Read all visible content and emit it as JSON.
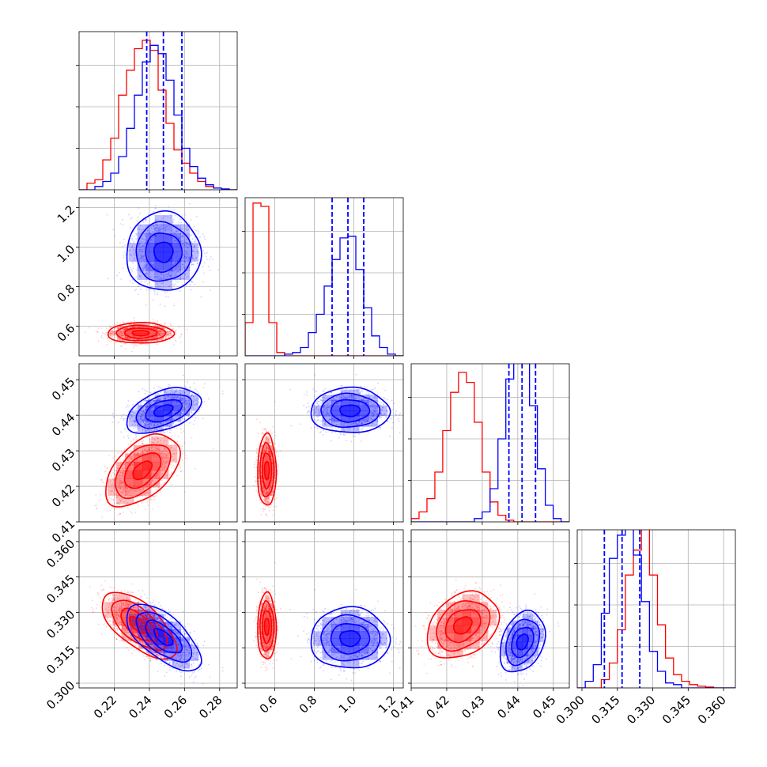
{
  "chart_data": {
    "type": "scatter",
    "figure_kind": "corner plot",
    "parameters": 4,
    "series": [
      {
        "color": "#ff0000"
      },
      {
        "color": "#0000ff"
      }
    ],
    "axis_ticks": [
      [
        "0.22",
        "0.24",
        "0.26",
        "0.28"
      ],
      [
        "0.6",
        "0.8",
        "1.0",
        "1.2"
      ],
      [
        "0.41",
        "0.42",
        "0.43",
        "0.44",
        "0.45"
      ],
      [
        "0.300",
        "0.315",
        "0.330",
        "0.345",
        "0.360"
      ]
    ],
    "axis_ranges": [
      [
        0.2,
        0.29
      ],
      [
        0.45,
        1.25
      ],
      [
        0.41,
        0.4545
      ],
      [
        0.298,
        0.365
      ]
    ],
    "means": [
      {
        "red": [
          0.235,
          0.57,
          0.425,
          0.324
        ],
        "blue": [
          0.248,
          0.97,
          0.441,
          0.318
        ]
      }
    ],
    "quantiles_blue": {
      "p0": [
        0.2385,
        0.248,
        0.2585
      ],
      "p1": [
        0.89,
        0.97,
        1.05
      ],
      "p2": [
        0.4375,
        0.4412,
        0.445
      ],
      "p3": [
        0.3095,
        0.317,
        0.3245
      ]
    },
    "hist_1d": {
      "p0": {
        "edges_start": 0.2,
        "edges_step": 0.0045,
        "red": [
          0,
          0.04,
          0.06,
          0.18,
          0.31,
          0.57,
          0.72,
          0.85,
          0.9,
          0.84,
          0.6,
          0.4,
          0.24,
          0.16,
          0.1,
          0.05,
          0.02,
          0.01,
          0,
          0
        ],
        "blue": [
          0,
          0,
          0.02,
          0.05,
          0.1,
          0.2,
          0.37,
          0.57,
          0.77,
          0.87,
          0.82,
          0.66,
          0.45,
          0.25,
          0.14,
          0.07,
          0.03,
          0.01,
          0.005,
          0
        ]
      },
      "p1": {
        "edges_start": 0.45,
        "edges_step": 0.04,
        "red": [
          0.2,
          0.92,
          0.9,
          0.2,
          0.02,
          0,
          0,
          0,
          0,
          0,
          0,
          0,
          0,
          0,
          0,
          0,
          0,
          0,
          0,
          0
        ],
        "blue": [
          0,
          0,
          0,
          0,
          0,
          0.01,
          0.02,
          0.05,
          0.14,
          0.25,
          0.42,
          0.58,
          0.71,
          0.72,
          0.52,
          0.29,
          0.12,
          0.05,
          0.01,
          0
        ]
      },
      "p2": {
        "edges_start": 0.41,
        "edges_step": 0.00222,
        "red": [
          0.02,
          0.06,
          0.14,
          0.3,
          0.55,
          0.78,
          0.9,
          0.84,
          0.6,
          0.3,
          0.12,
          0.04,
          0.01,
          0,
          0,
          0,
          0,
          0,
          0,
          0
        ],
        "blue": [
          0,
          0,
          0,
          0,
          0,
          0,
          0,
          0,
          0.02,
          0.06,
          0.2,
          0.5,
          0.86,
          1.0,
          0.98,
          0.7,
          0.32,
          0.1,
          0.02,
          0
        ]
      },
      "p3": {
        "edges_start": 0.298,
        "edges_step": 0.0034,
        "red": [
          0,
          0,
          0,
          0.05,
          0.15,
          0.35,
          0.68,
          0.83,
          0.97,
          0.68,
          0.38,
          0.18,
          0.08,
          0.04,
          0.02,
          0.01,
          0.005,
          0,
          0,
          0
        ],
        "blue": [
          0,
          0.04,
          0.14,
          0.45,
          0.78,
          0.92,
          0.98,
          0.8,
          0.52,
          0.22,
          0.1,
          0.03,
          0.02,
          0,
          0,
          0,
          0,
          0,
          0,
          0
        ]
      }
    },
    "pairs_2d": [
      {
        "x": 0,
        "y": 1,
        "red": {
          "mean": [
            0.235,
            0.565
          ],
          "sd": [
            0.008,
            0.022
          ],
          "rho": 0.0
        },
        "blue": {
          "mean": [
            0.248,
            0.975
          ],
          "sd": [
            0.009,
            0.085
          ],
          "rho": 0.0
        }
      },
      {
        "x": 0,
        "y": 2,
        "red": {
          "mean": [
            0.236,
            0.4245
          ],
          "sd": [
            0.009,
            0.0043
          ],
          "rho": 0.5
        },
        "blue": {
          "mean": [
            0.248,
            0.4413
          ],
          "sd": [
            0.009,
            0.0027
          ],
          "rho": 0.45
        }
      },
      {
        "x": 1,
        "y": 2,
        "red": {
          "mean": [
            0.56,
            0.4245
          ],
          "sd": [
            0.02,
            0.0043
          ],
          "rho": 0.0
        },
        "blue": {
          "mean": [
            0.98,
            0.4413
          ],
          "sd": [
            0.085,
            0.0027
          ],
          "rho": 0.0
        }
      },
      {
        "x": 0,
        "y": 3,
        "red": {
          "mean": [
            0.234,
            0.3245
          ],
          "sd": [
            0.009,
            0.006
          ],
          "rho": -0.65
        },
        "blue": {
          "mean": [
            0.248,
            0.3195
          ],
          "sd": [
            0.009,
            0.006
          ],
          "rho": -0.65
        }
      },
      {
        "x": 1,
        "y": 3,
        "red": {
          "mean": [
            0.56,
            0.324
          ],
          "sd": [
            0.02,
            0.006
          ],
          "rho": 0.0
        },
        "blue": {
          "mean": [
            0.98,
            0.319
          ],
          "sd": [
            0.085,
            0.0055
          ],
          "rho": 0.0
        }
      },
      {
        "x": 2,
        "y": 3,
        "red": {
          "mean": [
            0.4245,
            0.3245
          ],
          "sd": [
            0.0043,
            0.006
          ],
          "rho": 0.3
        },
        "blue": {
          "mean": [
            0.4413,
            0.3175
          ],
          "sd": [
            0.0027,
            0.0055
          ],
          "rho": 0.3
        }
      }
    ],
    "grid": true,
    "legend": "none"
  }
}
